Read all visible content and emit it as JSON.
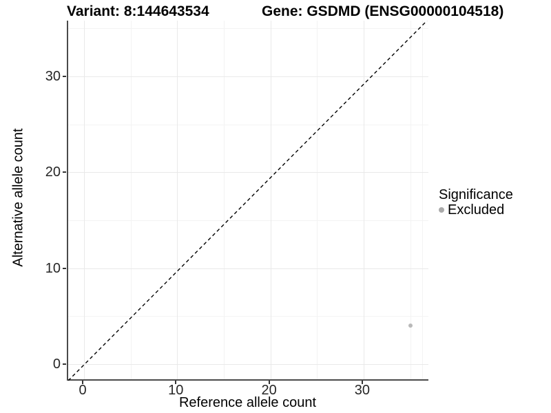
{
  "titles": {
    "variant": "Variant: 8:144643534",
    "gene": "Gene: GSDMD (ENSG00000104518)"
  },
  "chart_data": {
    "type": "scatter",
    "title_left": "Variant: 8:144643534",
    "title_right": "Gene: GSDMD (ENSG00000104518)",
    "xlabel": "Reference allele count",
    "ylabel": "Alternative allele count",
    "x_ticks": [
      0,
      10,
      20,
      30
    ],
    "y_ticks": [
      0,
      10,
      20,
      30
    ],
    "x_minor_gridlines": [
      5,
      15,
      25,
      35,
      36.3
    ],
    "y_minor_gridlines": [
      5,
      15,
      25,
      35
    ],
    "xlim": [
      -1.7,
      37.1
    ],
    "ylim": [
      -1.7,
      35.8
    ],
    "grid": true,
    "reference_line": {
      "kind": "identity y=x",
      "style": "dashed",
      "color": "#000000"
    },
    "points": [
      {
        "x": 35,
        "y": 4,
        "series": "Excluded",
        "color": "#b9b9b9"
      }
    ],
    "legend": {
      "title": "Significance",
      "position": "right",
      "items": [
        {
          "label": "Excluded",
          "color": "#aaaaaa"
        }
      ]
    }
  },
  "colors": {
    "axis_line": "#4a4a4a",
    "grid_major": "#e9e9e9",
    "grid_minor": "#f3f3f3",
    "point": "#b9b9b9",
    "legend_key": "#aaaaaa"
  }
}
